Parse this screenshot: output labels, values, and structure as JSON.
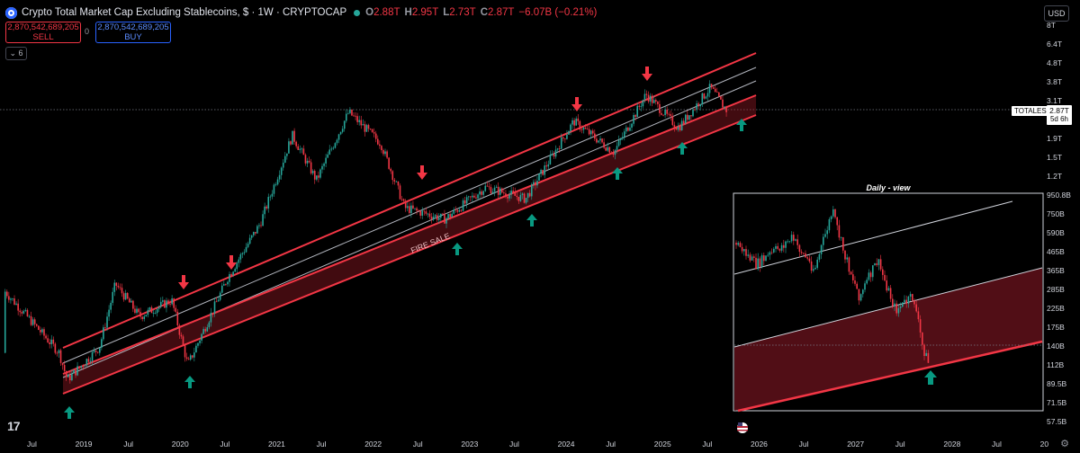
{
  "header": {
    "title": "Crypto Total Market Cap Excluding Stablecoins, $ · 1W · CRYPTOCAP",
    "open": "2.88T",
    "high": "2.95T",
    "low": "2.73T",
    "close": "2.87T",
    "change": "−6.07B (−0.21%)",
    "o_label": "O",
    "h_label": "H",
    "l_label": "L",
    "c_label": "C"
  },
  "trade": {
    "sell_value": "2,870,542,689,205",
    "sell_label": "SELL",
    "buy_value": "2,870,542,689,205",
    "buy_label": "BUY",
    "spread": "0"
  },
  "indicators_count": "6",
  "currency": "USD",
  "price_label": {
    "symbol": "TOTALES",
    "value": "2.87T",
    "countdown": "5d 6h"
  },
  "colors": {
    "up": "#26a69a",
    "down": "#f23645",
    "channel": "#f23645",
    "mid": "#b2b5be",
    "arrow_down": "#f23645",
    "arrow_up": "#089981"
  },
  "icons": [
    "tradingview-logo-icon",
    "gear-icon",
    "us-flag-icon",
    "chevron-down-icon"
  ],
  "chart_data": {
    "type": "candlestick",
    "scale": "log",
    "y_ticks": [
      "8T",
      "6.4T",
      "4.8T",
      "3.8T",
      "3.1T",
      "2.4T",
      "1.9T",
      "1.5T",
      "1.2T",
      "950.8B",
      "750B",
      "590B",
      "465B",
      "365B",
      "285B",
      "225B",
      "175B",
      "140B",
      "112B",
      "89.5B",
      "71.5B",
      "57.5B"
    ],
    "x_ticks": [
      "Jul",
      "2019",
      "Jul",
      "2020",
      "Jul",
      "2021",
      "Jul",
      "2022",
      "Jul",
      "2023",
      "Jul",
      "2024",
      "Jul",
      "2025",
      "Jul",
      "2026",
      "Jul",
      "2027",
      "Jul",
      "2028",
      "Jul",
      "20"
    ],
    "points": [
      {
        "date": "2018-11",
        "value": 140
      },
      {
        "date": "2018-12",
        "value": 100
      },
      {
        "date": "2019-04",
        "value": 150
      },
      {
        "date": "2019-06",
        "value": 330
      },
      {
        "date": "2019-09",
        "value": 220
      },
      {
        "date": "2020-01",
        "value": 270
      },
      {
        "date": "2020-03",
        "value": 120
      },
      {
        "date": "2020-08",
        "value": 360
      },
      {
        "date": "2020-12",
        "value": 700
      },
      {
        "date": "2021-04",
        "value": 2100
      },
      {
        "date": "2021-07",
        "value": 1200
      },
      {
        "date": "2021-11",
        "value": 2800
      },
      {
        "date": "2022-03",
        "value": 1900
      },
      {
        "date": "2022-06",
        "value": 850
      },
      {
        "date": "2022-11",
        "value": 740
      },
      {
        "date": "2023-04",
        "value": 1100
      },
      {
        "date": "2023-09",
        "value": 950
      },
      {
        "date": "2024-03",
        "value": 2500
      },
      {
        "date": "2024-08",
        "value": 1700
      },
      {
        "date": "2024-12",
        "value": 3500
      },
      {
        "date": "2025-04",
        "value": 2300
      },
      {
        "date": "2025-08",
        "value": 3800
      },
      {
        "date": "2025-10",
        "value": 2870
      }
    ],
    "annotations": [
      "FIRE SALE"
    ],
    "inset": {
      "title": "Daily - view",
      "points": [
        {
          "date": "2025-05",
          "value": 2500
        },
        {
          "date": "2025-06",
          "value": 3000
        },
        {
          "date": "2025-07",
          "value": 2950
        },
        {
          "date": "2025-08",
          "value": 3400
        },
        {
          "date": "2025-09",
          "value": 2900
        },
        {
          "date": "2025-10",
          "value": 2800
        },
        {
          "date": "2025-11",
          "value": 2500
        },
        {
          "date": "2025-12",
          "value": 2200
        }
      ]
    }
  }
}
